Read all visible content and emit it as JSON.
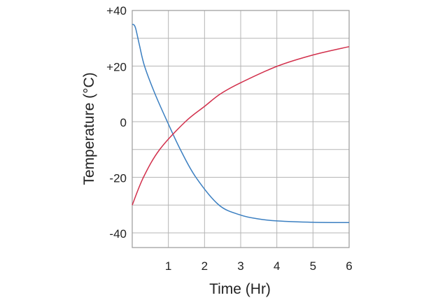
{
  "chart_data": {
    "type": "line",
    "title": "",
    "xlabel": "Time (Hr)",
    "ylabel": "Temperature (°C)",
    "xlim": [
      0,
      6
    ],
    "ylim": [
      -45,
      40
    ],
    "grid": true,
    "x_ticks": [
      "1",
      "2",
      "3",
      "4",
      "5",
      "6"
    ],
    "x_tick_values": [
      1,
      2,
      3,
      4,
      5,
      6
    ],
    "y_ticks": [
      "+40",
      "+20",
      "0",
      "-20",
      "-40"
    ],
    "y_tick_values": [
      40,
      20,
      0,
      -20,
      -40
    ],
    "y_grid_step": 10,
    "series": [
      {
        "color": "#3b7fc1",
        "x": [
          0,
          0.05,
          0.1,
          0.2,
          0.34,
          0.63,
          0.97,
          1.33,
          1.76,
          2.4,
          3,
          3.5,
          4,
          5,
          6
        ],
        "y": [
          35,
          34.8,
          33.3,
          27.5,
          20,
          10,
          0,
          -10,
          -20,
          -30,
          -33.6,
          -35,
          -35.7,
          -36.2,
          -36.3
        ]
      },
      {
        "color": "#d2304c",
        "x": [
          0,
          0.31,
          0.76,
          1.47,
          2,
          2.44,
          3,
          4.02,
          5,
          6
        ],
        "y": [
          -30,
          -20,
          -10,
          0,
          5.5,
          10,
          14,
          20,
          24,
          27
        ]
      }
    ]
  }
}
